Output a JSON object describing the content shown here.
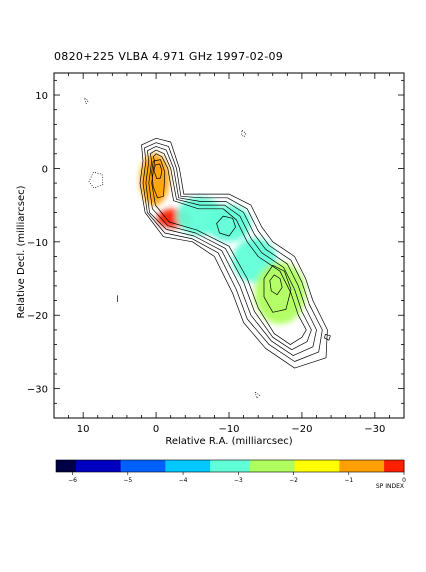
{
  "chart_data": {
    "type": "heatmap",
    "title": "0820+225   VLBA   4.971 GHz   1997-02-09",
    "xlabel": "Relative R.A. (milliarcsec)",
    "ylabel": "Relative Decl. (milliarcsec)",
    "xlim": [
      14,
      -34
    ],
    "ylim": [
      -34,
      13
    ],
    "x_ticks": [
      10,
      0,
      -10,
      -20,
      -30
    ],
    "y_ticks": [
      10,
      0,
      -10,
      -20,
      -30
    ],
    "colorbar": {
      "label": "SP INDEX",
      "range": [
        -6.3,
        0
      ],
      "ticks": [
        -6,
        -5,
        -4,
        -3,
        -2,
        -1,
        0
      ],
      "colors": [
        "#000044",
        "#0000c0",
        "#0060ff",
        "#00c8ff",
        "#60ffd8",
        "#b0ff60",
        "#ffff00",
        "#ffa000",
        "#ff2000"
      ]
    },
    "spectral_index_blobs": [
      {
        "x": 0.2,
        "y": -1.5,
        "rx": 2.0,
        "ry": 3.5,
        "value": -0.6
      },
      {
        "x": -2.5,
        "y": -6.8,
        "rx": 2.4,
        "ry": 1.3,
        "value": -0.3
      },
      {
        "x": -6.0,
        "y": -6.5,
        "rx": 3.2,
        "ry": 2.6,
        "value": -3.0
      },
      {
        "x": -10.0,
        "y": -7.5,
        "rx": 3.0,
        "ry": 2.5,
        "value": -3.2
      },
      {
        "x": -13.5,
        "y": -12.5,
        "rx": 3.0,
        "ry": 3.0,
        "value": -2.8
      },
      {
        "x": -17.0,
        "y": -17.0,
        "rx": 3.5,
        "ry": 4.2,
        "value": -2.5
      }
    ],
    "contours": [
      {
        "level": 1,
        "style": "solid",
        "points": [
          [
            1.8,
            1
          ],
          [
            2,
            3.2
          ],
          [
            0,
            4.1
          ],
          [
            -2,
            3.6
          ],
          [
            -3.2,
            0
          ],
          [
            -3.8,
            -3.5
          ],
          [
            -6.5,
            -3.5
          ],
          [
            -10,
            -3.5
          ],
          [
            -13,
            -5
          ],
          [
            -14.5,
            -8
          ],
          [
            -16,
            -10
          ],
          [
            -19,
            -12
          ],
          [
            -20.5,
            -15
          ],
          [
            -21.5,
            -18
          ],
          [
            -23.5,
            -22
          ],
          [
            -23.3,
            -25.8
          ],
          [
            -19,
            -27.2
          ],
          [
            -15,
            -24.5
          ],
          [
            -12,
            -21
          ],
          [
            -10.5,
            -17
          ],
          [
            -8,
            -12
          ],
          [
            -5,
            -10
          ],
          [
            -1,
            -9.3
          ],
          [
            1.5,
            -6
          ],
          [
            2.2,
            -2
          ]
        ]
      },
      {
        "level": 2,
        "style": "solid",
        "points": [
          [
            1.4,
            1
          ],
          [
            1.6,
            2.8
          ],
          [
            0,
            3.5
          ],
          [
            -1.7,
            3
          ],
          [
            -2.8,
            0
          ],
          [
            -3.4,
            -3.8
          ],
          [
            -6.3,
            -4
          ],
          [
            -9.8,
            -4
          ],
          [
            -12.5,
            -5.5
          ],
          [
            -14,
            -8.5
          ],
          [
            -15.5,
            -10.5
          ],
          [
            -18.5,
            -12.5
          ],
          [
            -20,
            -15.5
          ],
          [
            -21,
            -18.5
          ],
          [
            -22.8,
            -22
          ],
          [
            -22.3,
            -25
          ],
          [
            -19,
            -26.3
          ],
          [
            -15.5,
            -24
          ],
          [
            -12.5,
            -20.5
          ],
          [
            -11,
            -16.5
          ],
          [
            -8.5,
            -11.5
          ],
          [
            -5,
            -9.6
          ],
          [
            -1.2,
            -8.8
          ],
          [
            1.2,
            -6
          ],
          [
            1.8,
            -2
          ]
        ]
      },
      {
        "level": 3,
        "style": "solid",
        "points": [
          [
            1,
            1
          ],
          [
            1.2,
            2.4
          ],
          [
            0,
            3
          ],
          [
            -1.4,
            2.5
          ],
          [
            -2.4,
            0
          ],
          [
            -3.1,
            -4
          ],
          [
            -6.1,
            -4.5
          ],
          [
            -9.6,
            -4.5
          ],
          [
            -12,
            -6
          ],
          [
            -13.5,
            -9
          ],
          [
            -15,
            -11
          ],
          [
            -18,
            -13
          ],
          [
            -19.5,
            -16
          ],
          [
            -20.5,
            -19
          ],
          [
            -22,
            -22
          ],
          [
            -21.5,
            -24.3
          ],
          [
            -18.8,
            -25.5
          ],
          [
            -15.8,
            -23.5
          ],
          [
            -13,
            -20
          ],
          [
            -11.5,
            -16
          ],
          [
            -9,
            -11.2
          ],
          [
            -5.2,
            -9.2
          ],
          [
            -1.4,
            -8.3
          ],
          [
            0.9,
            -6
          ],
          [
            1.4,
            -2
          ]
        ]
      },
      {
        "level": 4,
        "style": "solid",
        "points": [
          [
            0.6,
            1
          ],
          [
            0.8,
            2
          ],
          [
            0,
            2.5
          ],
          [
            -1.1,
            2
          ],
          [
            -2,
            0
          ],
          [
            -2.8,
            -4.2
          ],
          [
            -6,
            -5
          ],
          [
            -9.4,
            -5
          ],
          [
            -11.5,
            -6.5
          ],
          [
            -13,
            -9.5
          ],
          [
            -14.5,
            -11.5
          ],
          [
            -17.5,
            -13.5
          ],
          [
            -19,
            -16.5
          ],
          [
            -20,
            -19.5
          ],
          [
            -21.3,
            -22
          ],
          [
            -20.7,
            -23.6
          ],
          [
            -18.6,
            -24.7
          ],
          [
            -16,
            -23
          ],
          [
            -13.5,
            -19.5
          ],
          [
            -12,
            -15.5
          ],
          [
            -9.5,
            -10.9
          ],
          [
            -5.4,
            -8.8
          ],
          [
            -1.6,
            -7.8
          ],
          [
            0.5,
            -5.5
          ],
          [
            1,
            -2
          ]
        ]
      },
      {
        "level": 5,
        "style": "solid",
        "points": [
          [
            0.2,
            1
          ],
          [
            0.4,
            1.6
          ],
          [
            0,
            2
          ],
          [
            -0.8,
            1.6
          ],
          [
            -1.6,
            0
          ],
          [
            -2.4,
            -4.4
          ],
          [
            -5.8,
            -5.5
          ],
          [
            -9.2,
            -5.5
          ],
          [
            -11,
            -7
          ],
          [
            -12.5,
            -10
          ],
          [
            -14,
            -12
          ],
          [
            -17,
            -14
          ],
          [
            -18.5,
            -17
          ],
          [
            -19.5,
            -20
          ],
          [
            -20.6,
            -22
          ],
          [
            -20,
            -23
          ],
          [
            -18.4,
            -24
          ],
          [
            -16.2,
            -22.5
          ],
          [
            -14,
            -19
          ],
          [
            -12.5,
            -15
          ],
          [
            -10,
            -10.6
          ],
          [
            -5.6,
            -8.4
          ],
          [
            -1.8,
            -7.3
          ],
          [
            0.1,
            -5
          ],
          [
            0.6,
            -2
          ]
        ]
      },
      {
        "level": 6,
        "style": "solid",
        "points": [
          [
            0.6,
            -0.5
          ],
          [
            0.4,
            1
          ],
          [
            -0.6,
            1.2
          ],
          [
            -1.2,
            -0.5
          ],
          [
            -1.1,
            -2.5
          ],
          [
            -1,
            -3.8
          ],
          [
            -0.2,
            -4
          ],
          [
            0.4,
            -2.5
          ]
        ]
      },
      {
        "level": 7,
        "style": "solid",
        "points": [
          [
            0.3,
            -0.3
          ],
          [
            0.1,
            0.5
          ],
          [
            -0.5,
            0.6
          ],
          [
            -0.8,
            -0.3
          ],
          [
            -0.6,
            -1.3
          ],
          [
            -0.1,
            -1.4
          ]
        ]
      },
      {
        "level": 6,
        "style": "solid",
        "points": [
          [
            -8.3,
            -7.5
          ],
          [
            -9.2,
            -6.5
          ],
          [
            -10.5,
            -6.8
          ],
          [
            -10.9,
            -8
          ],
          [
            -10,
            -9.2
          ],
          [
            -8.7,
            -8.8
          ]
        ]
      },
      {
        "level": 6,
        "style": "solid",
        "points": [
          [
            -14.8,
            -15
          ],
          [
            -16,
            -13.2
          ],
          [
            -17.6,
            -14
          ],
          [
            -18.5,
            -16.5
          ],
          [
            -17.8,
            -19.2
          ],
          [
            -16,
            -19.6
          ],
          [
            -14.8,
            -17.5
          ]
        ]
      },
      {
        "level": 7,
        "style": "solid",
        "points": [
          [
            -15.6,
            -15.3
          ],
          [
            -16.2,
            -14.5
          ],
          [
            -17,
            -15
          ],
          [
            -17.3,
            -16.2
          ],
          [
            -16.6,
            -17.2
          ],
          [
            -15.8,
            -16.7
          ]
        ]
      },
      {
        "level": -1,
        "style": "dotted",
        "points": [
          [
            8.6,
            -0.5
          ],
          [
            9.2,
            -1.8
          ],
          [
            8.5,
            -2.7
          ],
          [
            7.3,
            -2.2
          ],
          [
            7.4,
            -0.8
          ]
        ]
      },
      {
        "level": -1,
        "style": "dotted",
        "points": [
          [
            9.8,
            9.6
          ],
          [
            9.3,
            9.2
          ],
          [
            9.6,
            8.8
          ]
        ]
      },
      {
        "level": -1,
        "style": "dotted",
        "points": [
          [
            -11.8,
            5.2
          ],
          [
            -12.3,
            4.8
          ],
          [
            -12.1,
            4.3
          ],
          [
            -11.7,
            4.6
          ]
        ]
      },
      {
        "level": -1,
        "style": "dotted",
        "points": [
          [
            -13.6,
            -30.5
          ],
          [
            -14.2,
            -30.9
          ],
          [
            -13.8,
            -31.3
          ]
        ]
      },
      {
        "level": 1,
        "style": "solid",
        "points": [
          [
            -23.2,
            -22.6
          ],
          [
            -23.9,
            -22.8
          ],
          [
            -23.7,
            -23.4
          ],
          [
            -23.1,
            -23.1
          ]
        ]
      },
      {
        "level": 1,
        "style": "solid",
        "points": [
          [
            5.3,
            -17.3
          ],
          [
            5.3,
            -18.2
          ]
        ]
      }
    ]
  }
}
